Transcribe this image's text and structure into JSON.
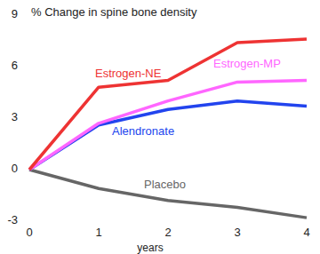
{
  "chart_data": {
    "type": "line",
    "title": "% Change in spine bone density",
    "x_label": "years",
    "x": [
      0,
      1,
      2,
      3,
      4
    ],
    "xlim": [
      0,
      4
    ],
    "xticks": [
      0,
      1,
      2,
      3,
      4
    ],
    "ylim": [
      -3,
      9
    ],
    "yticks": [
      -3,
      0,
      3,
      6,
      9
    ],
    "grid": false,
    "series": [
      {
        "name": "Estrogen-NE",
        "color": "#ee3333",
        "values": [
          0,
          4.8,
          5.2,
          7.4,
          7.6
        ]
      },
      {
        "name": "Estrogen-MP",
        "color": "#ff66ff",
        "values": [
          0,
          2.7,
          4.0,
          5.1,
          5.2
        ]
      },
      {
        "name": "Alendronate",
        "color": "#2244ee",
        "values": [
          0,
          2.6,
          3.5,
          4.0,
          3.7
        ]
      },
      {
        "name": "Placebo",
        "color": "#666666",
        "values": [
          0,
          -1.1,
          -1.8,
          -2.2,
          -2.8
        ]
      }
    ]
  }
}
